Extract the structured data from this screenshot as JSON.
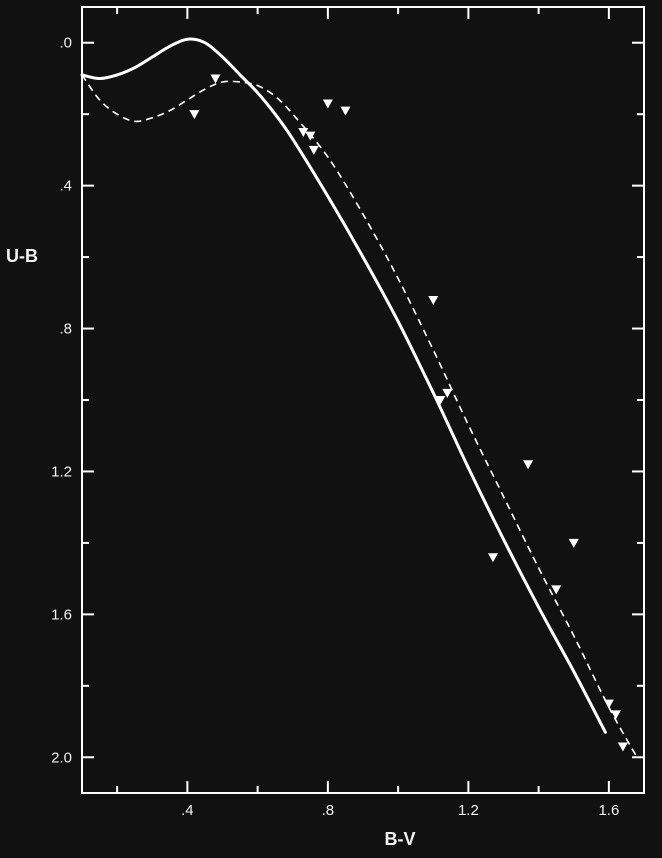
{
  "chart_data": {
    "type": "scatter",
    "title": "",
    "xlabel": "B-V",
    "ylabel": "U-B",
    "xlim": [
      0.1,
      1.7
    ],
    "ylim": [
      2.1,
      -0.1
    ],
    "y_inverted": true,
    "grid": false,
    "x_ticks": [
      0.4,
      0.8,
      1.2,
      1.6
    ],
    "x_tick_labels": [
      ".4",
      ".8",
      "1.2",
      "1.6"
    ],
    "y_ticks": [
      0.0,
      0.4,
      0.8,
      1.2,
      1.6,
      2.0
    ],
    "y_tick_labels": [
      ".0",
      ".4",
      ".8",
      "1.2",
      "1.6",
      "2.0"
    ],
    "series": [
      {
        "style": "solid line",
        "color": "#ffffff",
        "x": [
          0.1,
          0.15,
          0.2,
          0.25,
          0.3,
          0.35,
          0.4,
          0.45,
          0.5,
          0.55,
          0.6,
          0.65,
          0.7,
          0.8,
          0.9,
          1.0,
          1.1,
          1.2,
          1.3,
          1.4,
          1.5,
          1.59
        ],
        "y": [
          0.09,
          0.1,
          0.09,
          0.07,
          0.04,
          0.01,
          -0.01,
          0.0,
          0.04,
          0.09,
          0.14,
          0.2,
          0.27,
          0.43,
          0.6,
          0.78,
          0.98,
          1.19,
          1.39,
          1.58,
          1.76,
          1.93
        ]
      },
      {
        "style": "dashed line",
        "color": "#ffffff",
        "x": [
          0.1,
          0.15,
          0.2,
          0.25,
          0.3,
          0.35,
          0.4,
          0.45,
          0.5,
          0.55,
          0.6,
          0.65,
          0.7,
          0.8,
          0.9,
          1.0,
          1.1,
          1.2,
          1.3,
          1.4,
          1.5,
          1.6,
          1.68
        ],
        "y": [
          0.09,
          0.16,
          0.2,
          0.22,
          0.21,
          0.19,
          0.16,
          0.13,
          0.11,
          0.11,
          0.12,
          0.15,
          0.2,
          0.32,
          0.48,
          0.66,
          0.86,
          1.07,
          1.27,
          1.47,
          1.66,
          1.86,
          2.0
        ]
      },
      {
        "style": "triangle markers",
        "color": "#ffffff",
        "x": [
          0.42,
          0.48,
          0.73,
          0.75,
          0.76,
          0.8,
          0.85,
          1.1,
          1.12,
          1.14,
          1.27,
          1.37,
          1.45,
          1.5,
          1.6,
          1.62,
          1.64
        ],
        "y": [
          0.2,
          0.1,
          0.25,
          0.26,
          0.3,
          0.17,
          0.19,
          0.72,
          1.0,
          0.98,
          1.44,
          1.18,
          1.53,
          1.4,
          1.85,
          1.88,
          1.97
        ]
      }
    ]
  }
}
